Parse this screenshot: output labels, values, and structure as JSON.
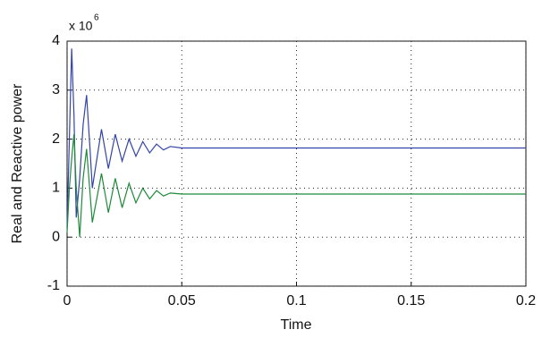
{
  "chart_data": {
    "type": "line",
    "x_label": "Time",
    "y_label": "Real and Reactive power",
    "y_multiplier": "x 10",
    "y_multiplier_exponent": "6",
    "x": [
      0,
      0.001,
      0.002,
      0.003,
      0.004,
      0.0055,
      0.007,
      0.0085,
      0.01,
      0.011,
      0.013,
      0.015,
      0.018,
      0.021,
      0.024,
      0.027,
      0.03,
      0.033,
      0.036,
      0.039,
      0.042,
      0.045,
      0.05,
      0.2
    ],
    "series": [
      {
        "color": "#3344aa",
        "values": [
          0.2,
          2.0,
          3.85,
          2.5,
          0.4,
          1.2,
          2.3,
          2.9,
          1.8,
          1.0,
          1.6,
          2.2,
          1.4,
          2.1,
          1.55,
          2.0,
          1.65,
          1.95,
          1.72,
          1.9,
          1.78,
          1.85,
          1.82,
          1.82
        ]
      },
      {
        "color": "#1e8a3a",
        "values": [
          0.1,
          1.0,
          1.6,
          2.1,
          1.0,
          0.0,
          1.2,
          1.8,
          0.9,
          0.3,
          0.8,
          1.3,
          0.5,
          1.2,
          0.6,
          1.1,
          0.7,
          1.0,
          0.78,
          0.95,
          0.84,
          0.9,
          0.88,
          0.88
        ]
      }
    ],
    "xlim": [
      0,
      0.2
    ],
    "xticks": [
      0,
      0.05,
      0.1,
      0.15,
      0.2
    ],
    "ylim": [
      -1,
      4
    ],
    "yticks": [
      -1,
      0,
      1,
      2,
      3,
      4
    ],
    "grid": true
  }
}
